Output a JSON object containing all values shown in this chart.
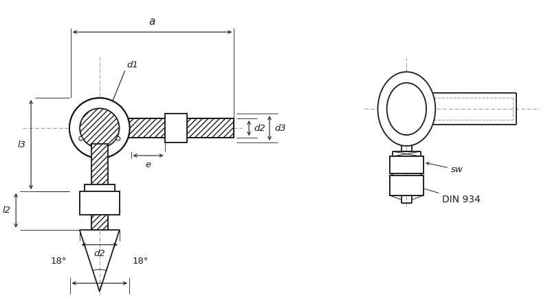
{
  "bg_color": "#ffffff",
  "line_color": "#1a1a1a",
  "dash_color": "#999999",
  "figsize": [
    8.0,
    4.46
  ],
  "dpi": 100,
  "labels": {
    "a": "a",
    "d1": "d1",
    "d2": "d2",
    "d3": "d3",
    "l2": "l2",
    "l3": "l3",
    "e": "e",
    "sw": "sw",
    "din934": "DIN 934",
    "angle_left": "18°",
    "angle_right": "18°"
  }
}
